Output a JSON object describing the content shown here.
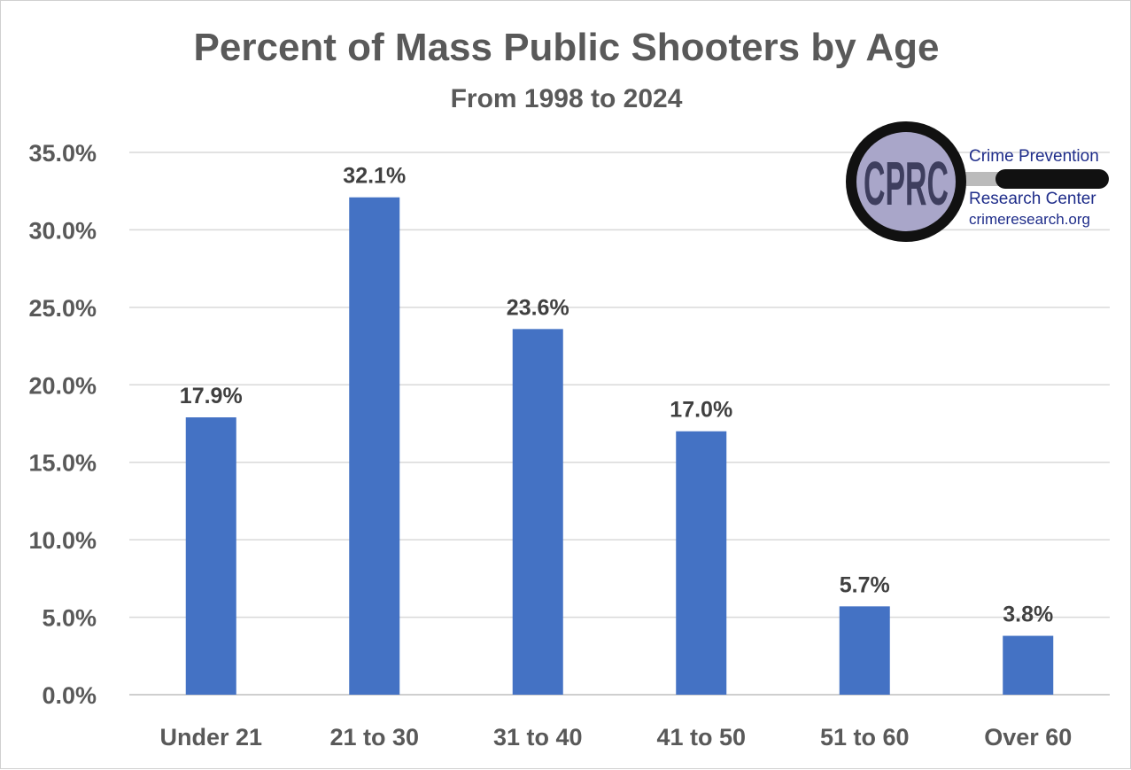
{
  "chart_data": {
    "type": "bar",
    "title": "Percent of Mass Public Shooters by Age",
    "subtitle": "From 1998 to 2024",
    "categories": [
      "Under 21",
      "21 to 30",
      "31 to 40",
      "41 to 50",
      "51 to 60",
      "Over 60"
    ],
    "values": [
      17.9,
      32.1,
      23.6,
      17.0,
      5.7,
      3.8
    ],
    "data_labels": [
      "17.9%",
      "32.1%",
      "23.6%",
      "17.0%",
      "5.7%",
      "3.8%"
    ],
    "xlabel": "",
    "ylabel": "",
    "ylim": [
      0,
      35
    ],
    "yticks": [
      0,
      5,
      10,
      15,
      20,
      25,
      30,
      35
    ],
    "ytick_labels": [
      "0.0%",
      "5.0%",
      "10.0%",
      "15.0%",
      "20.0%",
      "25.0%",
      "30.0%",
      "35.0%"
    ],
    "grid": true,
    "bar_color": "#4472c4"
  },
  "logo": {
    "letters": "CPRC",
    "line1": "Crime Prevention",
    "line2": "Research Center",
    "url": "crimeresearch.org"
  }
}
